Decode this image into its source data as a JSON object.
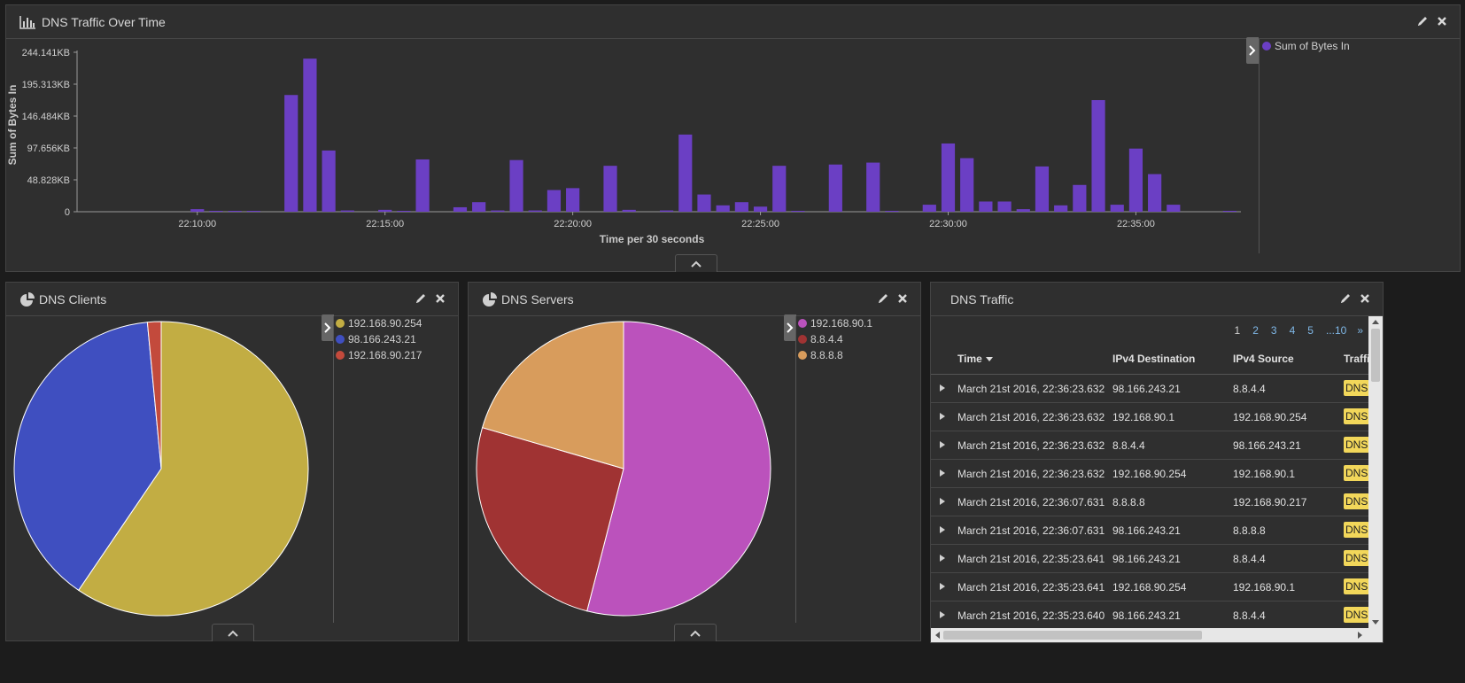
{
  "traffic_panel": {
    "title": "DNS Traffic Over Time",
    "legend": [
      {
        "label": "Sum of Bytes In",
        "color": "#6b3fc4"
      }
    ]
  },
  "chart_data": [
    {
      "type": "bar",
      "ylabel": "Sum of Bytes In",
      "xlabel": "Time per 30 seconds",
      "x_tick_labels": [
        "22:10:00",
        "22:15:00",
        "22:20:00",
        "22:25:00",
        "22:30:00",
        "22:35:00"
      ],
      "y_tick_labels": [
        "0",
        "48.828KB",
        "97.656KB",
        "146.484KB",
        "195.313KB",
        "244.141KB"
      ],
      "ylim": [
        0,
        250000
      ],
      "unit": "bytes",
      "series": [
        {
          "color": "#6b3fc4",
          "values": [
            0,
            0,
            0,
            0,
            0,
            0,
            4000,
            1000,
            1000,
            1000,
            0,
            183000,
            240000,
            96000,
            2000,
            0,
            3000,
            1000,
            82000,
            0,
            7000,
            15000,
            2000,
            81000,
            2000,
            34000,
            37000,
            0,
            72000,
            3000,
            0,
            2000,
            121000,
            27000,
            10000,
            15000,
            8000,
            72000,
            1000,
            0,
            74000,
            0,
            77000,
            1000,
            0,
            11000,
            107000,
            84000,
            16000,
            16000,
            4000,
            71000,
            10000,
            42000,
            175000,
            11000,
            99000,
            59000,
            11000,
            0,
            0,
            1000
          ]
        }
      ]
    },
    {
      "type": "pie",
      "categories": [
        "192.168.90.254",
        "98.166.243.21",
        "192.168.90.217"
      ],
      "values": [
        59.5,
        39.0,
        1.5
      ],
      "colors": [
        "#c2ad43",
        "#3f4fc0",
        "#c34a3c"
      ]
    },
    {
      "type": "pie",
      "categories": [
        "192.168.90.1",
        "8.8.4.4",
        "8.8.8.8"
      ],
      "values": [
        54.0,
        25.5,
        20.5
      ],
      "colors": [
        "#bb52bc",
        "#a03333",
        "#d89c5c"
      ]
    }
  ],
  "clients_panel": {
    "title": "DNS Clients",
    "legend": [
      {
        "label": "192.168.90.254",
        "color": "#c2ad43"
      },
      {
        "label": "98.166.243.21",
        "color": "#3f4fc0"
      },
      {
        "label": "192.168.90.217",
        "color": "#c34a3c"
      }
    ]
  },
  "servers_panel": {
    "title": "DNS Servers",
    "legend": [
      {
        "label": "192.168.90.1",
        "color": "#bb52bc"
      },
      {
        "label": "8.8.4.4",
        "color": "#a03333"
      },
      {
        "label": "8.8.8.8",
        "color": "#d89c5c"
      }
    ]
  },
  "table_panel": {
    "title": "DNS Traffic",
    "pages": [
      "1",
      "2",
      "3",
      "4",
      "5",
      "...10",
      "»"
    ],
    "current_page": "1",
    "columns": [
      "Time",
      "IPv4 Destination",
      "IPv4 Source",
      "Traffic"
    ],
    "rows": [
      {
        "time": "March 21st 2016, 22:36:23.632",
        "dst": "98.166.243.21",
        "src": "8.8.4.4",
        "traffic": "DNS"
      },
      {
        "time": "March 21st 2016, 22:36:23.632",
        "dst": "192.168.90.1",
        "src": "192.168.90.254",
        "traffic": "DNS"
      },
      {
        "time": "March 21st 2016, 22:36:23.632",
        "dst": "8.8.4.4",
        "src": "98.166.243.21",
        "traffic": "DNS"
      },
      {
        "time": "March 21st 2016, 22:36:23.632",
        "dst": "192.168.90.254",
        "src": "192.168.90.1",
        "traffic": "DNS"
      },
      {
        "time": "March 21st 2016, 22:36:07.631",
        "dst": "8.8.8.8",
        "src": "192.168.90.217",
        "traffic": "DNS"
      },
      {
        "time": "March 21st 2016, 22:36:07.631",
        "dst": "98.166.243.21",
        "src": "8.8.8.8",
        "traffic": "DNS"
      },
      {
        "time": "March 21st 2016, 22:35:23.641",
        "dst": "98.166.243.21",
        "src": "8.8.4.4",
        "traffic": "DNS"
      },
      {
        "time": "March 21st 2016, 22:35:23.641",
        "dst": "192.168.90.254",
        "src": "192.168.90.1",
        "traffic": "DNS"
      },
      {
        "time": "March 21st 2016, 22:35:23.640",
        "dst": "98.166.243.21",
        "src": "8.8.4.4",
        "traffic": "DNS"
      }
    ]
  }
}
